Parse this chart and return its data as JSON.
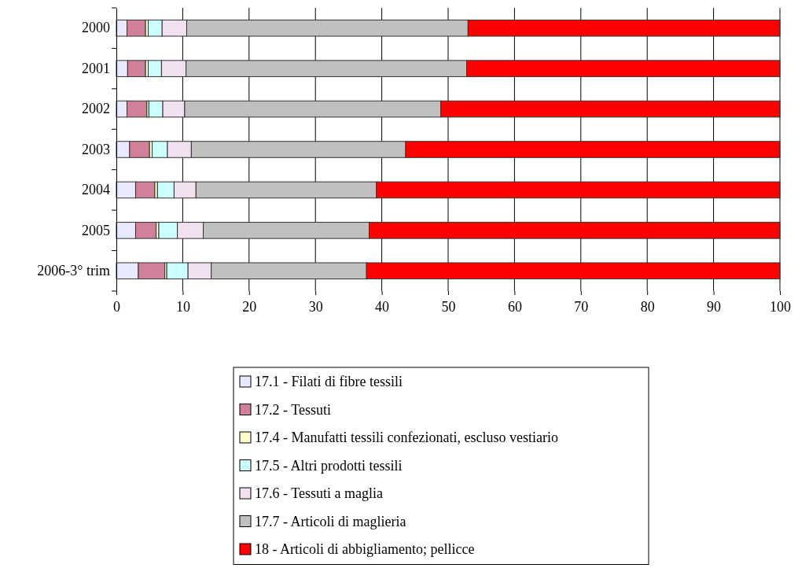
{
  "chart_data": {
    "type": "bar",
    "orientation": "horizontal",
    "stacked": true,
    "categories": [
      "2000",
      "2001",
      "2002",
      "2003",
      "2004",
      "2005",
      "2006-3° trim"
    ],
    "series": [
      {
        "name": "17.1 - Filati di fibre tessili",
        "color": "#e8e8ff",
        "values": [
          1.6,
          1.7,
          1.6,
          2.0,
          2.9,
          2.9,
          3.3
        ]
      },
      {
        "name": "17.2 - Tessuti",
        "color": "#d08098",
        "values": [
          2.8,
          2.7,
          3.0,
          3.0,
          2.9,
          3.1,
          4.0
        ]
      },
      {
        "name": "17.4 - Manufatti tessili confezionati, escluso vestiario",
        "color": "#ffffcc",
        "values": [
          0.4,
          0.4,
          0.3,
          0.4,
          0.4,
          0.4,
          0.3
        ]
      },
      {
        "name": "17.5 - Altri prodotti tessili",
        "color": "#ccffff",
        "values": [
          2.1,
          2.0,
          2.1,
          2.3,
          2.5,
          2.8,
          3.2
        ]
      },
      {
        "name": "17.6 - Tessuti a maglia",
        "color": "#f0e0f0",
        "values": [
          3.7,
          3.7,
          3.3,
          3.6,
          3.3,
          3.9,
          3.5
        ]
      },
      {
        "name": "17.7 - Articoli di maglieria",
        "color": "#c0c0c0",
        "values": [
          42.4,
          42.3,
          38.6,
          32.3,
          27.2,
          25.0,
          23.4
        ]
      },
      {
        "name": "18 - Articoli di abbigliamento; pellicce",
        "color": "#ff0000",
        "values": [
          47.0,
          47.2,
          51.1,
          56.4,
          60.8,
          61.9,
          62.3
        ]
      }
    ],
    "xlim": [
      0,
      100
    ],
    "xticks": [
      0,
      10,
      20,
      30,
      40,
      50,
      60,
      70,
      80,
      90,
      100
    ],
    "grid": "x",
    "legend": "bottom"
  }
}
